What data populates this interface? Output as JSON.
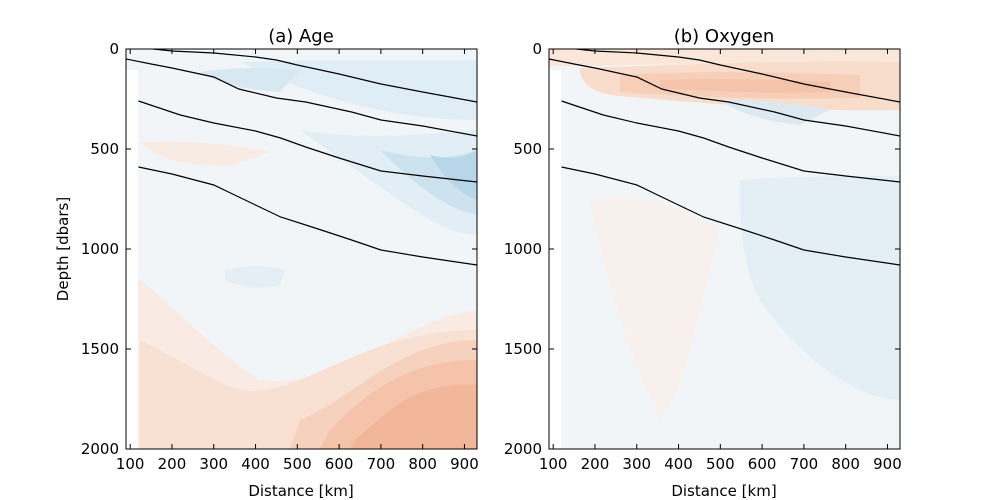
{
  "chart_data": [
    {
      "type": "contour",
      "title": "(a) Age",
      "xlabel": "Distance [km]",
      "ylabel": "Depth [dbars]",
      "xlim": [
        90,
        930
      ],
      "ylim": [
        2000,
        0
      ],
      "y_inverted": true,
      "xticks": [
        100,
        200,
        300,
        400,
        500,
        600,
        700,
        800,
        900
      ],
      "yticks": [
        0,
        500,
        1000,
        1500,
        2000
      ],
      "colormap": "RdBu_r (diverging, blue = negative, red = positive)",
      "contour_lines_depth": [
        {
          "x": [
            155,
            200,
            300,
            400,
            450,
            500,
            600,
            700,
            800,
            930
          ],
          "y": [
            0,
            10,
            20,
            40,
            55,
            80,
            125,
            175,
            215,
            265
          ]
        },
        {
          "x": [
            90,
            150,
            200,
            300,
            360,
            450,
            520,
            630,
            700,
            800,
            930
          ],
          "y": [
            50,
            75,
            95,
            140,
            200,
            245,
            265,
            315,
            355,
            385,
            435
          ]
        },
        {
          "x": [
            120,
            220,
            300,
            400,
            460,
            520,
            600,
            700,
            800,
            930
          ],
          "y": [
            260,
            330,
            370,
            410,
            445,
            490,
            545,
            610,
            635,
            665
          ]
        },
        {
          "x": [
            120,
            200,
            300,
            340,
            400,
            460,
            550,
            630,
            700,
            800,
            930
          ],
          "y": [
            590,
            625,
            680,
            720,
            780,
            840,
            900,
            955,
            1005,
            1040,
            1080
          ]
        }
      ]
    },
    {
      "type": "contour",
      "title": "(b) Oxygen",
      "xlabel": "Distance [km]",
      "ylabel": "",
      "xlim": [
        90,
        930
      ],
      "ylim": [
        2000,
        0
      ],
      "y_inverted": true,
      "xticks": [
        100,
        200,
        300,
        400,
        500,
        600,
        700,
        800,
        900
      ],
      "yticks": [
        0,
        500,
        1000,
        1500,
        2000
      ],
      "colormap": "RdBu_r (diverging, blue = negative, red = positive)",
      "contour_lines_depth": [
        {
          "x": [
            155,
            200,
            300,
            400,
            450,
            500,
            600,
            700,
            800,
            930
          ],
          "y": [
            0,
            10,
            20,
            40,
            55,
            80,
            125,
            175,
            215,
            265
          ]
        },
        {
          "x": [
            90,
            150,
            200,
            300,
            360,
            450,
            520,
            630,
            700,
            800,
            930
          ],
          "y": [
            50,
            75,
            95,
            140,
            200,
            245,
            265,
            315,
            355,
            385,
            435
          ]
        },
        {
          "x": [
            120,
            220,
            300,
            400,
            460,
            520,
            600,
            700,
            800,
            930
          ],
          "y": [
            260,
            330,
            370,
            410,
            445,
            490,
            545,
            610,
            635,
            665
          ]
        },
        {
          "x": [
            120,
            200,
            300,
            340,
            400,
            460,
            550,
            630,
            700,
            800,
            930
          ],
          "y": [
            590,
            625,
            680,
            720,
            780,
            840,
            900,
            955,
            1005,
            1040,
            1080
          ]
        }
      ]
    }
  ]
}
